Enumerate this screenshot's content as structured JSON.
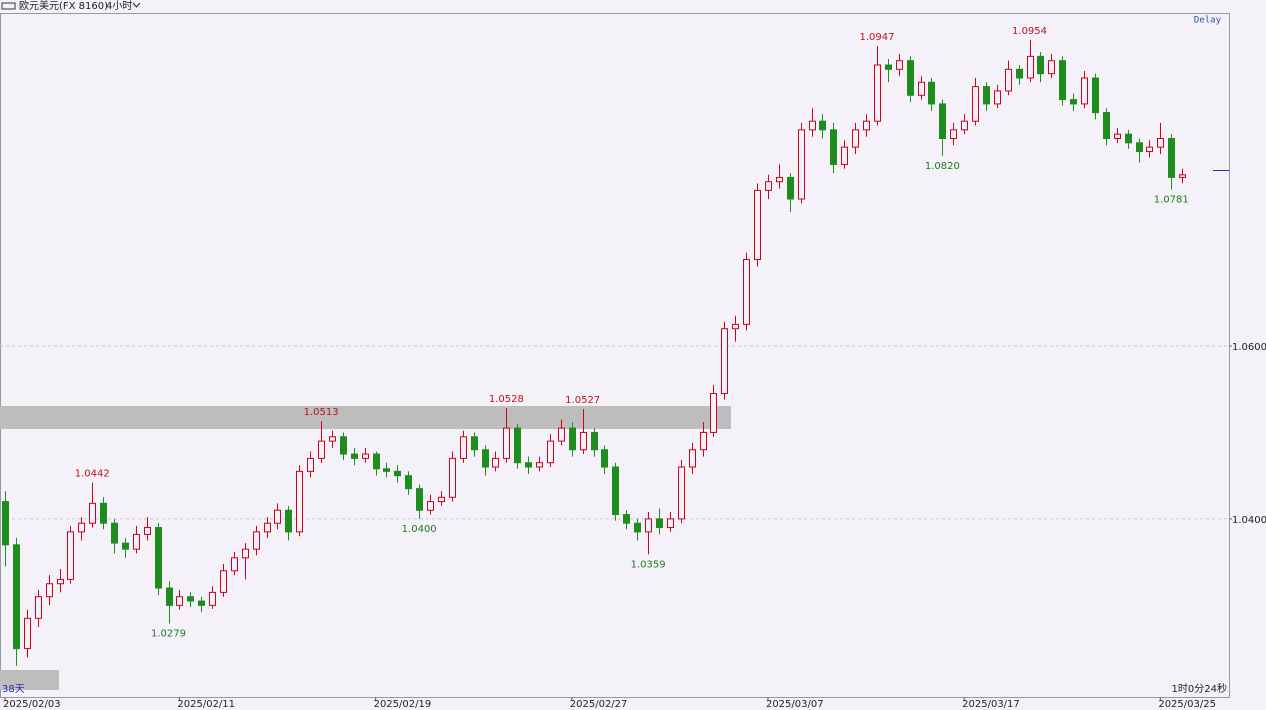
{
  "chart_data": {
    "type": "candlestick",
    "title": "欧元美元(FX 8160)",
    "timeframe": "4小时",
    "status": "Delay",
    "range_label": "38天",
    "countdown": "1时0分24秒",
    "up_color": "#d0021b",
    "down_color": "#1e8c1e",
    "grid": true,
    "ylim": [
      1.0194,
      1.0984
    ],
    "yticks": [
      {
        "value": 1.04,
        "label": "1.0400"
      },
      {
        "value": 1.06,
        "label": "1.0600"
      }
    ],
    "xlim": [
      -0.46,
      112.3
    ],
    "xticks": [
      {
        "value": 0,
        "label": "2025/02/03"
      },
      {
        "value": 16,
        "label": "2025/02/11"
      },
      {
        "value": 34,
        "label": "2025/02/19"
      },
      {
        "value": 52,
        "label": "2025/02/27"
      },
      {
        "value": 70,
        "label": "2025/03/07"
      },
      {
        "value": 88,
        "label": "2025/03/17"
      },
      {
        "value": 106,
        "label": "2025/03/25"
      }
    ],
    "candles": [
      [
        1.042,
        1.0432,
        1.0345,
        1.037
      ],
      [
        1.037,
        1.0378,
        1.023,
        1.025
      ],
      [
        1.025,
        1.0295,
        1.024,
        1.0285
      ],
      [
        1.0285,
        1.0318,
        1.0275,
        1.031
      ],
      [
        1.031,
        1.0335,
        1.03,
        1.0325
      ],
      [
        1.0325,
        1.0342,
        1.0315,
        1.033
      ],
      [
        1.033,
        1.0392,
        1.0325,
        1.0385
      ],
      [
        1.0385,
        1.0402,
        1.0375,
        1.0395
      ],
      [
        1.0395,
        1.0442,
        1.039,
        1.0418
      ],
      [
        1.0418,
        1.0425,
        1.0388,
        1.0395
      ],
      [
        1.0395,
        1.04,
        1.036,
        1.0372
      ],
      [
        1.0372,
        1.0378,
        1.0355,
        1.0365
      ],
      [
        1.0365,
        1.0392,
        1.036,
        1.0382
      ],
      [
        1.0382,
        1.0402,
        1.0375,
        1.039
      ],
      [
        1.039,
        1.0395,
        1.0312,
        1.032
      ],
      [
        1.032,
        1.0328,
        1.0279,
        1.03
      ],
      [
        1.03,
        1.0318,
        1.0295,
        1.031
      ],
      [
        1.031,
        1.0315,
        1.0298,
        1.0305
      ],
      [
        1.0305,
        1.031,
        1.0292,
        1.03
      ],
      [
        1.03,
        1.0322,
        1.0296,
        1.0315
      ],
      [
        1.0315,
        1.0348,
        1.031,
        1.034
      ],
      [
        1.034,
        1.0362,
        1.0335,
        1.0355
      ],
      [
        1.0355,
        1.0372,
        1.033,
        1.0365
      ],
      [
        1.0365,
        1.0392,
        1.0358,
        1.0385
      ],
      [
        1.0385,
        1.0402,
        1.0378,
        1.0395
      ],
      [
        1.0395,
        1.0418,
        1.0388,
        1.041
      ],
      [
        1.041,
        1.0415,
        1.0375,
        1.0385
      ],
      [
        1.0385,
        1.0462,
        1.038,
        1.0455
      ],
      [
        1.0455,
        1.0478,
        1.0448,
        1.047
      ],
      [
        1.047,
        1.0513,
        1.0465,
        1.049
      ],
      [
        1.049,
        1.0502,
        1.0482,
        1.0495
      ],
      [
        1.0495,
        1.05,
        1.0468,
        1.0475
      ],
      [
        1.0475,
        1.0482,
        1.0462,
        1.047
      ],
      [
        1.047,
        1.0482,
        1.0465,
        1.0475
      ],
      [
        1.0475,
        1.0478,
        1.045,
        1.0458
      ],
      [
        1.0458,
        1.0465,
        1.0448,
        1.0455
      ],
      [
        1.0455,
        1.0462,
        1.0442,
        1.045
      ],
      [
        1.045,
        1.0455,
        1.0428,
        1.0435
      ],
      [
        1.0435,
        1.044,
        1.04,
        1.041
      ],
      [
        1.041,
        1.0428,
        1.0405,
        1.042
      ],
      [
        1.042,
        1.0432,
        1.0415,
        1.0425
      ],
      [
        1.0425,
        1.0478,
        1.042,
        1.047
      ],
      [
        1.047,
        1.0502,
        1.0465,
        1.0495
      ],
      [
        1.0495,
        1.05,
        1.0472,
        1.048
      ],
      [
        1.048,
        1.0485,
        1.045,
        1.046
      ],
      [
        1.046,
        1.0478,
        1.0455,
        1.047
      ],
      [
        1.047,
        1.0528,
        1.0465,
        1.0505
      ],
      [
        1.0505,
        1.051,
        1.0458,
        1.0465
      ],
      [
        1.0465,
        1.0472,
        1.0452,
        1.046
      ],
      [
        1.046,
        1.0472,
        1.0455,
        1.0465
      ],
      [
        1.0465,
        1.0498,
        1.046,
        1.049
      ],
      [
        1.049,
        1.0515,
        1.0485,
        1.0505
      ],
      [
        1.0505,
        1.0512,
        1.0472,
        1.048
      ],
      [
        1.048,
        1.0527,
        1.0475,
        1.05
      ],
      [
        1.05,
        1.0505,
        1.0472,
        1.048
      ],
      [
        1.048,
        1.0485,
        1.0452,
        1.046
      ],
      [
        1.046,
        1.0465,
        1.0398,
        1.0405
      ],
      [
        1.0405,
        1.041,
        1.0388,
        1.0395
      ],
      [
        1.0395,
        1.04,
        1.0375,
        1.0385
      ],
      [
        1.0385,
        1.0408,
        1.0359,
        1.04
      ],
      [
        1.04,
        1.0412,
        1.0382,
        1.039
      ],
      [
        1.039,
        1.0408,
        1.0385,
        1.04
      ],
      [
        1.04,
        1.0468,
        1.0395,
        1.046
      ],
      [
        1.046,
        1.0488,
        1.0452,
        1.048
      ],
      [
        1.048,
        1.0512,
        1.0472,
        1.05
      ],
      [
        1.05,
        1.0555,
        1.0495,
        1.0545
      ],
      [
        1.0545,
        1.0628,
        1.0538,
        1.062
      ],
      [
        1.062,
        1.0635,
        1.0605,
        1.0625
      ],
      [
        1.0625,
        1.0708,
        1.0618,
        1.07
      ],
      [
        1.07,
        1.0788,
        1.0692,
        1.078
      ],
      [
        1.078,
        1.0798,
        1.077,
        1.079
      ],
      [
        1.079,
        1.081,
        1.0782,
        1.0795
      ],
      [
        1.0795,
        1.08,
        1.0755,
        1.077
      ],
      [
        1.077,
        1.0858,
        1.0765,
        1.085
      ],
      [
        1.085,
        1.0875,
        1.0842,
        1.086
      ],
      [
        1.086,
        1.0868,
        1.084,
        1.085
      ],
      [
        1.085,
        1.0858,
        1.08,
        1.081
      ],
      [
        1.081,
        1.0838,
        1.0805,
        1.083
      ],
      [
        1.083,
        1.0858,
        1.0822,
        1.085
      ],
      [
        1.085,
        1.0868,
        1.0842,
        1.086
      ],
      [
        1.086,
        1.0947,
        1.0855,
        1.0925
      ],
      [
        1.0925,
        1.0932,
        1.0905,
        1.092
      ],
      [
        1.092,
        1.0938,
        1.0912,
        1.093
      ],
      [
        1.093,
        1.0935,
        1.0882,
        1.089
      ],
      [
        1.089,
        1.0912,
        1.0885,
        1.0905
      ],
      [
        1.0905,
        1.091,
        1.0872,
        1.088
      ],
      [
        1.088,
        1.0885,
        1.082,
        1.084
      ],
      [
        1.084,
        1.0858,
        1.0832,
        1.085
      ],
      [
        1.085,
        1.0868,
        1.0845,
        1.086
      ],
      [
        1.086,
        1.091,
        1.0855,
        1.09
      ],
      [
        1.09,
        1.0905,
        1.0872,
        1.088
      ],
      [
        1.088,
        1.0902,
        1.0875,
        1.0895
      ],
      [
        1.0895,
        1.093,
        1.089,
        1.092
      ],
      [
        1.092,
        1.0925,
        1.0902,
        1.091
      ],
      [
        1.091,
        1.0954,
        1.0905,
        1.0935
      ],
      [
        1.0935,
        1.094,
        1.0905,
        1.0915
      ],
      [
        1.0915,
        1.0938,
        1.091,
        1.093
      ],
      [
        1.093,
        1.0935,
        1.0878,
        1.0885
      ],
      [
        1.0885,
        1.0892,
        1.0872,
        1.088
      ],
      [
        1.088,
        1.0918,
        1.0875,
        1.091
      ],
      [
        1.091,
        1.0915,
        1.0862,
        1.087
      ],
      [
        1.087,
        1.0875,
        1.0832,
        1.084
      ],
      [
        1.084,
        1.0852,
        1.0835,
        1.0845
      ],
      [
        1.0845,
        1.085,
        1.0828,
        1.0835
      ],
      [
        1.0835,
        1.084,
        1.0812,
        1.0825
      ],
      [
        1.0825,
        1.0838,
        1.0818,
        1.083
      ],
      [
        1.083,
        1.0858,
        1.0822,
        1.084
      ],
      [
        1.084,
        1.0845,
        1.0781,
        1.0795
      ],
      [
        1.0795,
        1.0805,
        1.0788,
        1.0798
      ]
    ],
    "annotations": [
      {
        "value": 1.0442,
        "label": "1.0442",
        "candle": 8
      },
      {
        "value": 1.0279,
        "label": "1.0279",
        "candle": 15
      },
      {
        "value": 1.0513,
        "label": "1.0513",
        "candle": 29
      },
      {
        "value": 1.04,
        "label": "1.0400",
        "candle": 38
      },
      {
        "value": 1.0528,
        "label": "1.0528",
        "candle": 46
      },
      {
        "value": 1.0527,
        "label": "1.0527",
        "candle": 53
      },
      {
        "value": 1.0359,
        "label": "1.0359",
        "candle": 59
      },
      {
        "value": 1.0947,
        "label": "1.0947",
        "candle": 80
      },
      {
        "value": 1.082,
        "label": "1.0820",
        "candle": 86
      },
      {
        "value": 1.0954,
        "label": "1.0954",
        "candle": 94
      },
      {
        "value": 1.0781,
        "label": "1.0781",
        "candle": 107
      }
    ]
  }
}
